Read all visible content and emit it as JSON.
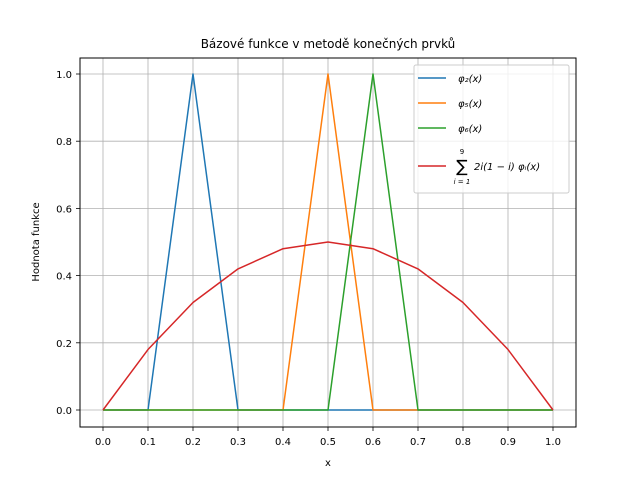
{
  "chart_data": {
    "type": "line",
    "title": "Bázové funkce v metodě konečných prvků",
    "xlabel": "x",
    "ylabel": "Hodnota funkce",
    "xlim": [
      -0.05,
      1.05
    ],
    "ylim": [
      -0.05,
      1.05
    ],
    "grid": true,
    "legend_position": "upper right",
    "x_ticks": [
      "0.0",
      "0.1",
      "0.2",
      "0.3",
      "0.4",
      "0.5",
      "0.6",
      "0.7",
      "0.8",
      "0.9",
      "1.0"
    ],
    "y_ticks": [
      "0.0",
      "0.2",
      "0.4",
      "0.6",
      "0.8",
      "1.0"
    ],
    "x": [
      0.0,
      0.1,
      0.2,
      0.3,
      0.4,
      0.5,
      0.6,
      0.7,
      0.8,
      0.9,
      1.0
    ],
    "series": [
      {
        "name": "φ2(x)",
        "color": "#1f77b4",
        "values": [
          0,
          0,
          1,
          0,
          0,
          0,
          0,
          0,
          0,
          0,
          0
        ]
      },
      {
        "name": "φ5(x)",
        "color": "#ff7f0e",
        "values": [
          0,
          0,
          0,
          0,
          0,
          1,
          0,
          0,
          0,
          0,
          0
        ]
      },
      {
        "name": "φ6(x)",
        "color": "#2ca02c",
        "values": [
          0,
          0,
          0,
          0,
          0,
          0,
          1,
          0,
          0,
          0,
          0
        ]
      },
      {
        "name": "Σ_{i=1}^{9} 2i(1−i)φ_i(x)",
        "color": "#d62728",
        "values": [
          0,
          0.18,
          0.32,
          0.42,
          0.48,
          0.5,
          0.48,
          0.42,
          0.32,
          0.18,
          0
        ]
      }
    ]
  },
  "legend": {
    "items": [
      {
        "label": "φ₂(x)",
        "color": "#1f77b4"
      },
      {
        "label": "φ₅(x)",
        "color": "#ff7f0e"
      },
      {
        "label": "φ₆(x)",
        "color": "#2ca02c"
      },
      {
        "label": "2i(1 − i) φᵢ(x)",
        "sum_top": "9",
        "sum_bottom": "i = 1",
        "sum_symbol": "∑",
        "color": "#d62728"
      }
    ]
  }
}
